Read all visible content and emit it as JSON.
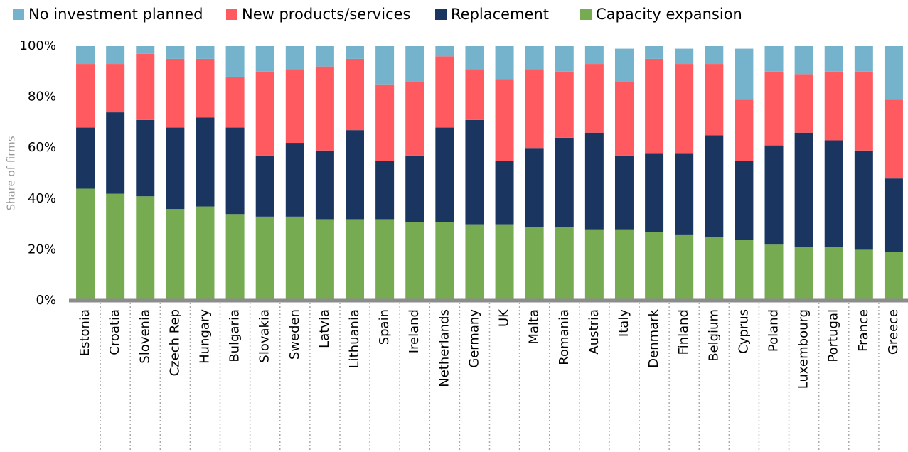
{
  "chart_data": {
    "type": "stacked_bar",
    "y_label": "Share of firms",
    "categories": [
      "Estonia",
      "Croatia",
      "Slovenia",
      "Czech Rep",
      "Hungary",
      "Bulgaria",
      "Slovakia",
      "Sweden",
      "Latvia",
      "Lithuania",
      "Spain",
      "Ireland",
      "Netherlands",
      "Germany",
      "UK",
      "Malta",
      "Romania",
      "Austria",
      "Italy",
      "Denmark",
      "Finland",
      "Belgium",
      "Cyprus",
      "Poland",
      "Luxembourg",
      "Portugal",
      "France",
      "Greece"
    ],
    "series": [
      {
        "name": "No investment planned",
        "color": "#74b3cb",
        "values": [
          7,
          7,
          3,
          5,
          5,
          12,
          10,
          9,
          8,
          5,
          15,
          14,
          4,
          9,
          13,
          9,
          10,
          7,
          13,
          5,
          6,
          7,
          20,
          10,
          11,
          10,
          10,
          21
        ]
      },
      {
        "name": "New products/services",
        "color": "#ff5a5f",
        "values": [
          25,
          19,
          26,
          27,
          23,
          20,
          33,
          29,
          33,
          28,
          30,
          29,
          28,
          20,
          32,
          31,
          26,
          27,
          29,
          37,
          35,
          28,
          24,
          29,
          23,
          27,
          31,
          31
        ]
      },
      {
        "name": "Replacement",
        "color": "#1a3660",
        "values": [
          24,
          32,
          30,
          32,
          35,
          34,
          24,
          29,
          27,
          35,
          23,
          26,
          37,
          41,
          25,
          31,
          35,
          38,
          29,
          31,
          32,
          40,
          31,
          39,
          45,
          42,
          39,
          29
        ]
      },
      {
        "name": "Capacity expansion",
        "color": "#77ab52",
        "values": [
          44,
          42,
          41,
          36,
          37,
          34,
          33,
          33,
          32,
          32,
          32,
          31,
          31,
          30,
          30,
          29,
          29,
          28,
          28,
          27,
          26,
          25,
          24,
          22,
          21,
          21,
          20,
          19
        ]
      }
    ],
    "ylim": [
      0,
      100
    ],
    "yticks": [
      {
        "value": 0,
        "label": "0%"
      },
      {
        "value": 20,
        "label": "20%"
      },
      {
        "value": 40,
        "label": "40%"
      },
      {
        "value": 60,
        "label": "60%"
      },
      {
        "value": 80,
        "label": "80%"
      },
      {
        "value": 100,
        "label": "100%"
      }
    ],
    "legend": "top-left",
    "grid": false
  }
}
